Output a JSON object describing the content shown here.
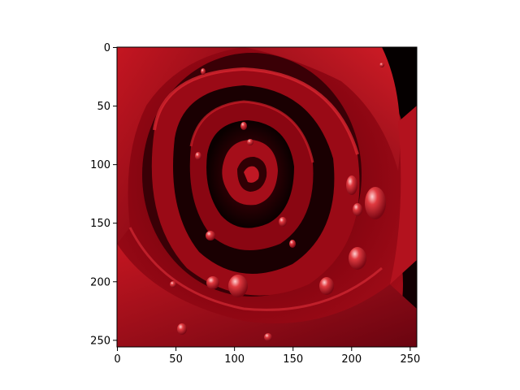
{
  "image": {
    "subject": "red-rose-with-water-droplets",
    "colors": {
      "petal_dark": "#3a0006",
      "petal_mid": "#8c0612",
      "petal_bright": "#c41621",
      "shadow": "#080000",
      "highlight": "#ff6a6a",
      "axis": "#000000",
      "background": "#ffffff"
    }
  },
  "chart_data": {
    "type": "image",
    "xlim": [
      0,
      256
    ],
    "ylim": [
      256,
      0
    ],
    "x_ticks": [
      {
        "value": 0,
        "label": "0"
      },
      {
        "value": 50,
        "label": "50"
      },
      {
        "value": 100,
        "label": "100"
      },
      {
        "value": 150,
        "label": "150"
      },
      {
        "value": 200,
        "label": "200"
      },
      {
        "value": 250,
        "label": "250"
      }
    ],
    "y_ticks": [
      {
        "value": 0,
        "label": "0"
      },
      {
        "value": 50,
        "label": "50"
      },
      {
        "value": 100,
        "label": "100"
      },
      {
        "value": 150,
        "label": "150"
      },
      {
        "value": 200,
        "label": "200"
      },
      {
        "value": 250,
        "label": "250"
      }
    ],
    "grid": false,
    "title": "",
    "xlabel": "",
    "ylabel": ""
  }
}
